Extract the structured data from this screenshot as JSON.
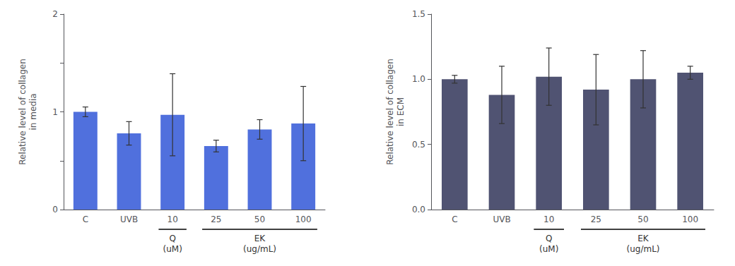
{
  "chart_data": [
    {
      "type": "bar",
      "categories": [
        "C",
        "UVB",
        "10",
        "25",
        "50",
        "100"
      ],
      "values": [
        1.0,
        0.78,
        0.97,
        0.65,
        0.82,
        0.88
      ],
      "errors": [
        0.05,
        0.12,
        0.42,
        0.06,
        0.1,
        0.38
      ],
      "ylabel": "Relative level of collagen\nin media",
      "ylim": [
        0,
        2
      ],
      "yticks": [
        0,
        {
          "value": 0.5,
          "label": ""
        },
        1,
        {
          "value": 1.5,
          "label": ""
        },
        2
      ],
      "grid": false,
      "annotations": [
        {
          "text": "Q\n(uM)",
          "categories": [
            "10"
          ]
        },
        {
          "text": "EK\n(ug/mL)",
          "categories": [
            "25",
            "50",
            "100"
          ]
        }
      ]
    },
    {
      "type": "bar",
      "categories": [
        "C",
        "UVB",
        "10",
        "25",
        "50",
        "100"
      ],
      "values": [
        1.0,
        0.88,
        1.02,
        0.92,
        1.0,
        1.05
      ],
      "errors": [
        0.03,
        0.22,
        0.22,
        0.27,
        0.22,
        0.05
      ],
      "ylabel": "Relative level of collagen\nin ECM",
      "ylim": [
        0,
        1.5
      ],
      "yticks": [
        {
          "value": 0,
          "label": "0.0"
        },
        0.5,
        {
          "value": 1,
          "label": "1.0"
        },
        1.5
      ],
      "grid": false,
      "annotations": [
        {
          "text": "Q\n(uM)",
          "categories": [
            "10"
          ]
        },
        {
          "text": "EK\n(ug/mL)",
          "categories": [
            "25",
            "50",
            "100"
          ]
        }
      ]
    }
  ]
}
